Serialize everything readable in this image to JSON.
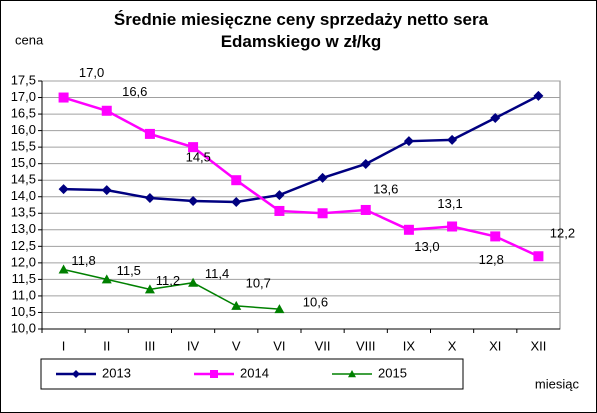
{
  "chart_data": {
    "type": "line",
    "title": "Średnie miesięczne ceny sprzedaży netto sera Edamskiego w zł/kg",
    "y_label": "cena",
    "x_label": "miesiąc",
    "categories": [
      "I",
      "II",
      "III",
      "IV",
      "V",
      "VI",
      "VII",
      "VIII",
      "IX",
      "X",
      "XI",
      "XII"
    ],
    "series": [
      {
        "name": "2013",
        "color": "#000080",
        "marker": "diamond",
        "values": [
          14.23,
          14.2,
          13.96,
          13.87,
          13.84,
          14.05,
          14.57,
          14.99,
          15.68,
          15.72,
          16.38,
          17.05
        ]
      },
      {
        "name": "2014",
        "color": "#ff00ff",
        "marker": "square",
        "values": [
          17.0,
          16.6,
          15.9,
          15.5,
          14.5,
          13.57,
          13.5,
          13.6,
          13.0,
          13.1,
          12.8,
          12.2
        ],
        "value_labels": [
          "17,0",
          "16,6",
          null,
          null,
          "14,5",
          null,
          null,
          "13,6",
          "13,0",
          "13,1",
          "12,8",
          "12,2"
        ]
      },
      {
        "name": "2015",
        "color": "#008000",
        "marker": "triangle",
        "values": [
          11.8,
          11.5,
          11.2,
          11.4,
          10.7,
          10.6,
          null,
          null,
          null,
          null,
          null,
          null
        ],
        "value_labels": [
          "11,8",
          "11,5",
          "11,2",
          "11,4",
          "10,7",
          "10,6",
          null,
          null,
          null,
          null,
          null,
          null
        ]
      }
    ],
    "ylim": [
      10.0,
      17.5
    ],
    "yticks": [
      {
        "value": 10.0,
        "label": "10,0"
      },
      {
        "value": 10.5,
        "label": "10,5"
      },
      {
        "value": 11.0,
        "label": "11,0"
      },
      {
        "value": 11.5,
        "label": "11,5"
      },
      {
        "value": 12.0,
        "label": "12,0"
      },
      {
        "value": 12.5,
        "label": "12,5"
      },
      {
        "value": 13.0,
        "label": "13,0"
      },
      {
        "value": 13.5,
        "label": "13,5"
      },
      {
        "value": 14.0,
        "label": "14,0"
      },
      {
        "value": 14.5,
        "label": "14,5"
      },
      {
        "value": 15.0,
        "label": "15,0"
      },
      {
        "value": 15.5,
        "label": "15,5"
      },
      {
        "value": 16.0,
        "label": "16,0"
      },
      {
        "value": 16.5,
        "label": "16,5"
      },
      {
        "value": 17.0,
        "label": "17,0"
      },
      {
        "value": 17.5,
        "label": "17,5"
      }
    ],
    "grid": true,
    "legend": "bottom"
  }
}
